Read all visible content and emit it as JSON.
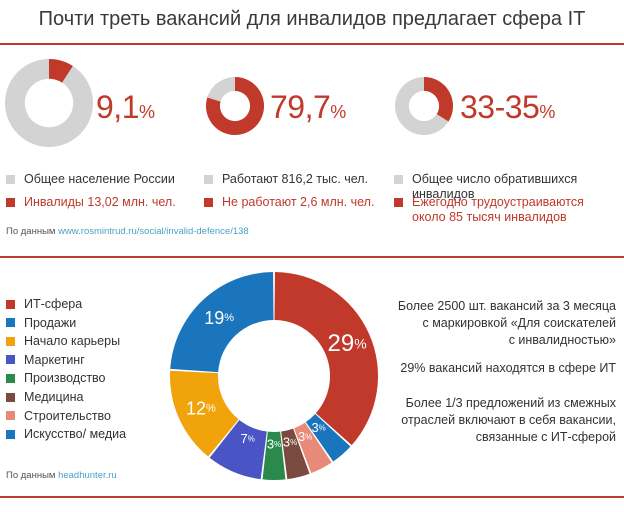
{
  "title": "Почти треть вакансий для инвалидов предлагает сфера IT",
  "colors": {
    "red": "#c0392b",
    "gray": "#d3d3d3",
    "link": "#4aa3c4"
  },
  "top_section": {
    "stats": [
      {
        "value": "9,1",
        "unit": "%",
        "fraction": 0.091,
        "legend_gray": "Общее население России",
        "legend_red": "Инвалиды 13,02 млн. чел."
      },
      {
        "value": "79,7",
        "unit": "%",
        "fraction": 0.797,
        "legend_gray": "Работают 816,2 тыс. чел.",
        "legend_red": "Не работают 2,6 млн. чел."
      },
      {
        "value": "33-35",
        "unit": "%",
        "fraction": 0.34,
        "legend_gray": "Общее число обратившихся инвалидов",
        "legend_red_line1": "Ежегодно трудоустраиваются",
        "legend_red_line2": "около 85 тысяч инвалидов"
      }
    ],
    "source_label": "По данным",
    "source_url": "www.rosmintrud.ru/social/invalid-defence/138"
  },
  "chart_data": {
    "type": "pie",
    "donut": true,
    "categories": [
      "ИТ-сфера",
      "Продажи",
      "Начало карьеры",
      "Маркетинг",
      "Производство",
      "Медицина",
      "Строительство",
      "Искусство/ медиа"
    ],
    "labels": [
      "29",
      "3",
      "12",
      "7",
      "3",
      "3",
      "3",
      "19"
    ],
    "unit": "%",
    "colors": [
      "#c0392b",
      "#1a75bc",
      "#f0a30a",
      "#4a54c4",
      "#2a8a4e",
      "#7a4a3e",
      "#e88a78",
      "#1a75bc"
    ],
    "drawing_order": [
      {
        "category": "ИТ-сфера",
        "value": 29,
        "color": "#c0392b"
      },
      {
        "category": "Продажи",
        "value": 3,
        "color": "#1a75bc"
      },
      {
        "category": "Строительство",
        "value": 3,
        "color": "#e88a78"
      },
      {
        "category": "Медицина",
        "value": 3,
        "color": "#7a4a3e"
      },
      {
        "category": "Производство",
        "value": 3,
        "color": "#2a8a4e"
      },
      {
        "category": "Маркетинг",
        "value": 7,
        "color": "#4a54c4"
      },
      {
        "category": "Начало карьеры",
        "value": 12,
        "color": "#f0a30a"
      },
      {
        "category": "Искусство/ медиа",
        "value": 19,
        "color": "#1a75bc"
      }
    ]
  },
  "bottom_section": {
    "notes": [
      [
        "Более 2500 шт. вакансий за 3 месяца",
        "с маркировкой «Для соискателей",
        "с инвалидностью»"
      ],
      [
        "29% вакансий находятся в сфере ИТ"
      ],
      [
        "Более 1/3 предложений из смежных",
        "отраслей включают в себя вакансии,",
        "связанные с ИТ-сферой"
      ]
    ],
    "source_label": "По данным",
    "source_url": "headhunter.ru"
  }
}
